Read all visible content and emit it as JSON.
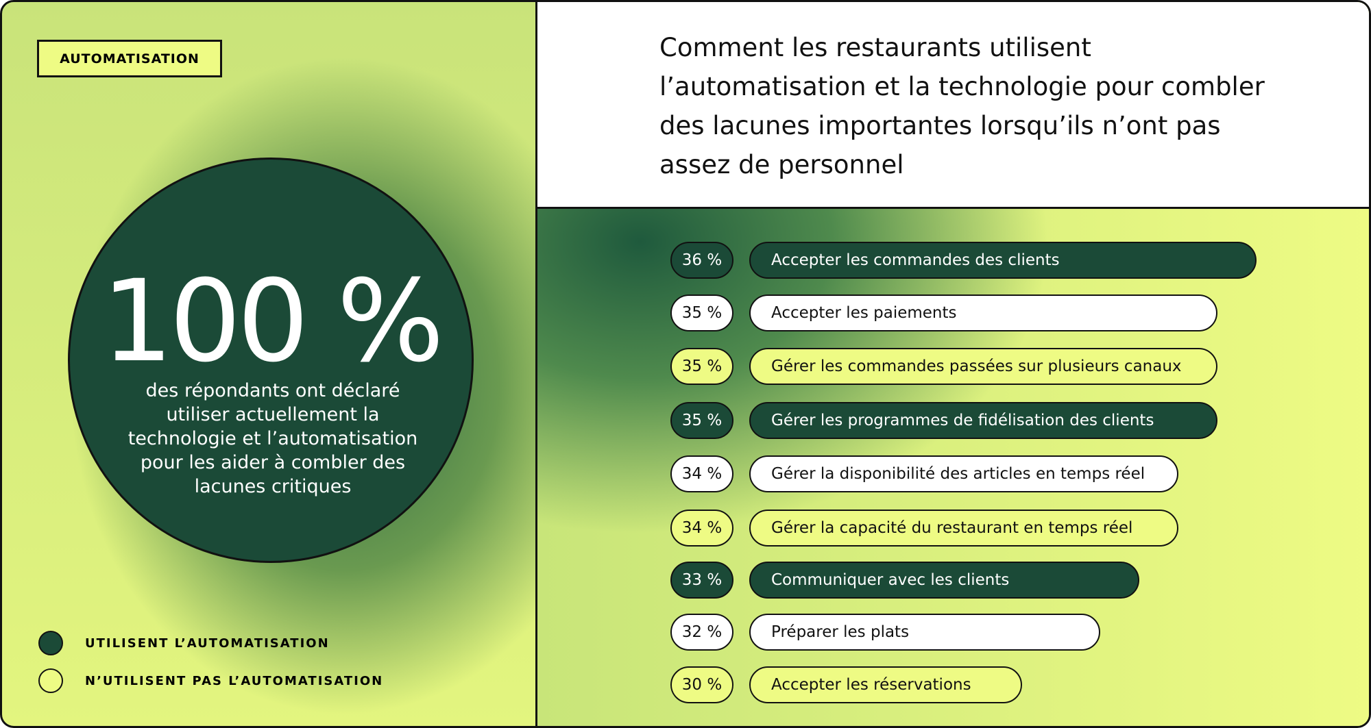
{
  "tag": "AUTOMATISATION",
  "stat": {
    "figure": "100 %",
    "text": "des répondants ont déclaré utiliser actuellement la technologie et l’automatisation pour les aider à combler des lacunes critiques"
  },
  "legend": [
    {
      "label": "UTILISENT L’AUTOMATISATION",
      "color": "#1b4a37"
    },
    {
      "label": "N’UTILISENT PAS L’AUTOMATISATION",
      "color": "#eefb84"
    }
  ],
  "chart_data": {
    "type": "bar",
    "orientation": "horizontal",
    "title": "Comment les restaurants utilisent l’automatisation et la technologie pour combler des lacunes importantes lorsqu’ils n’ont pas assez de personnel",
    "categories": [
      "Accepter les commandes des clients",
      "Accepter les paiements",
      "Gérer les commandes passées sur plusieurs canaux",
      "Gérer les programmes de fidélisation des clients",
      "Gérer la disponibilité des articles en temps réel",
      "Gérer la capacité du restaurant en temps réel",
      "Communiquer avec les clients",
      "Préparer les plats",
      "Accepter les réservations"
    ],
    "values": [
      36,
      35,
      35,
      35,
      34,
      34,
      33,
      32,
      30
    ],
    "value_labels": [
      "36 %",
      "35 %",
      "35 %",
      "35 %",
      "34 %",
      "34 %",
      "33 %",
      "32 %",
      "30 %"
    ],
    "colors": [
      "#1b4a37",
      "#ffffff",
      "#eefb84",
      "#1b4a37",
      "#ffffff",
      "#eefb84",
      "#1b4a37",
      "#ffffff",
      "#eefb84"
    ],
    "xlim": [
      23,
      36
    ]
  }
}
